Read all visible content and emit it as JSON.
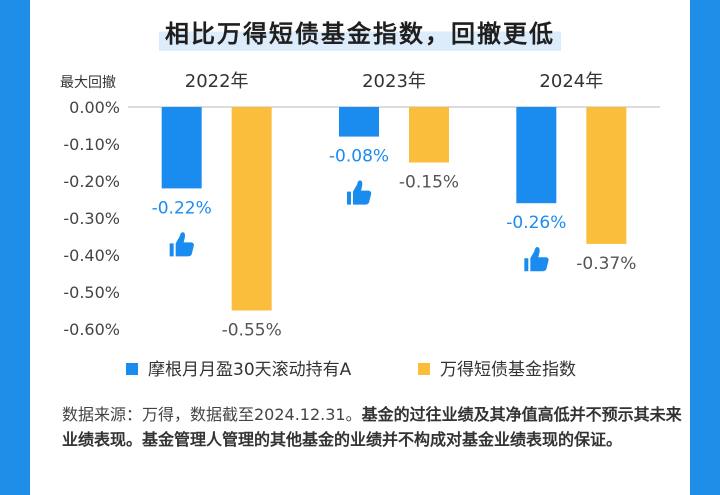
{
  "title": "相比万得短债基金指数，回撤更低",
  "chart_data": {
    "type": "bar",
    "ylabel": "最大回撤",
    "categories": [
      "2022年",
      "2023年",
      "2024年"
    ],
    "ylim": [
      -0.6,
      0
    ],
    "yticks": [
      0,
      -0.1,
      -0.2,
      -0.3,
      -0.4,
      -0.5,
      -0.6
    ],
    "ytick_labels": [
      "0.00%",
      "-0.10%",
      "-0.20%",
      "-0.30%",
      "-0.40%",
      "-0.50%",
      "-0.60%"
    ],
    "series": [
      {
        "name": "摩根月月盈30天滚动持有A",
        "color": "#1a8cf0",
        "values": [
          -0.22,
          -0.08,
          -0.26
        ],
        "labels": [
          "-0.22%",
          "-0.08%",
          "-0.26%"
        ],
        "label_color": "#1a8cf0"
      },
      {
        "name": "万得短债基金指数",
        "color": "#fbbd3c",
        "values": [
          -0.55,
          -0.15,
          -0.37
        ],
        "labels": [
          "-0.55%",
          "-0.15%",
          "-0.37%"
        ],
        "label_color": "#555555"
      }
    ],
    "annotation_icon": "thumbs-up-icon",
    "grid": false,
    "legend_position": "bottom"
  },
  "disclaimer": {
    "normal": "数据来源：万得，数据截至2024.12.31。",
    "bold": "基金的过往业绩及其净值高低并不预示其未来业绩表现。基金管理人管理的其他基金的业绩并不构成对基金业绩表现的保证。"
  }
}
